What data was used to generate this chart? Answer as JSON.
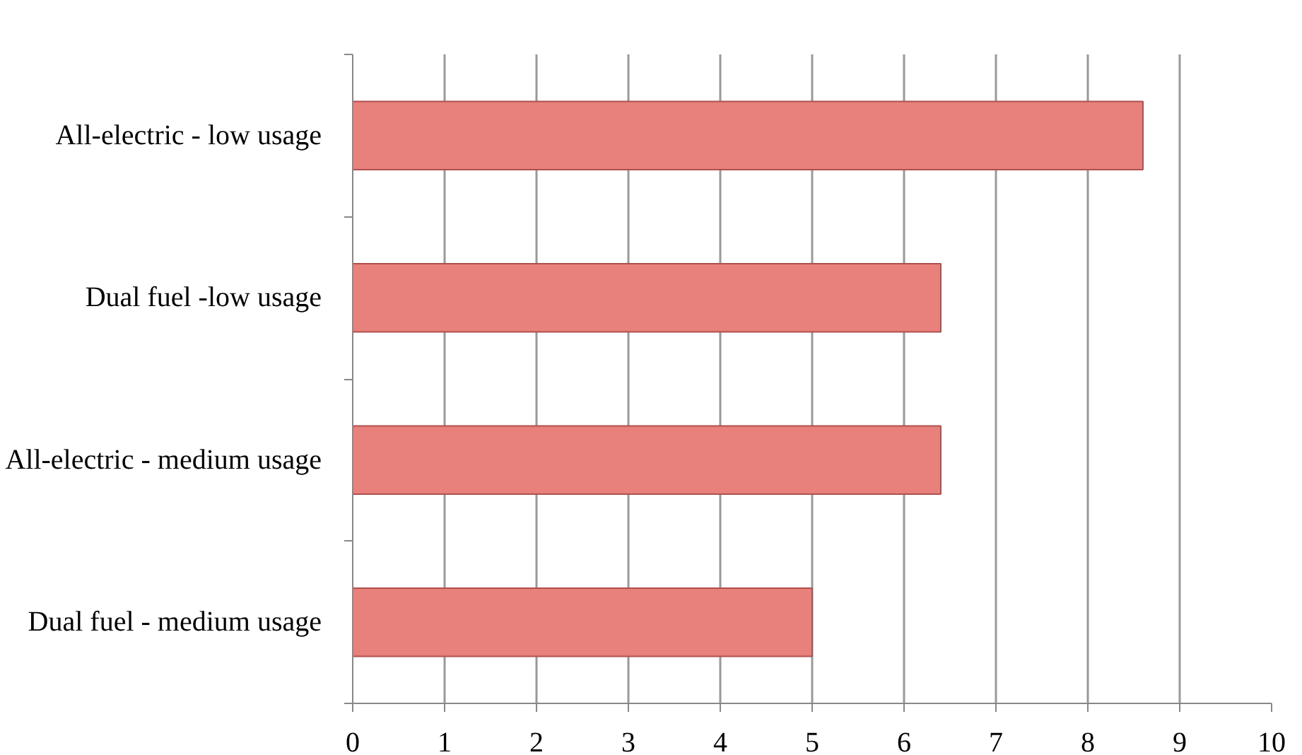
{
  "chart_data": {
    "type": "bar",
    "orientation": "horizontal",
    "categories": [
      "All-electric - low usage",
      "Dual fuel -low usage",
      "All-electric - medium usage",
      "Dual fuel - medium usage"
    ],
    "values": [
      8.6,
      6.4,
      6.4,
      5
    ],
    "color": "#e8807c",
    "xlim": [
      0,
      10
    ],
    "xticks": [
      0,
      1,
      2,
      3,
      4,
      5,
      6,
      7,
      8,
      9,
      10
    ],
    "grid": "x"
  }
}
